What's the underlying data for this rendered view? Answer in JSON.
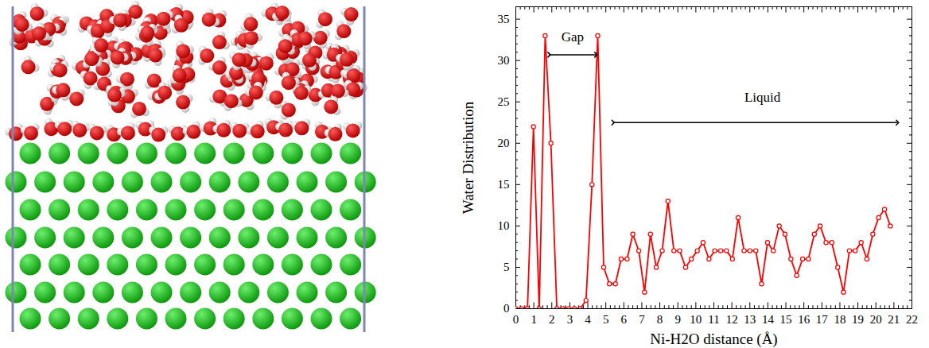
{
  "chart_data": {
    "type": "line",
    "xlabel": "Ni-H2O distance (Å)",
    "ylabel": "Water Distribution",
    "annotations": [
      "Gap",
      "Liquid"
    ],
    "x": [
      0,
      0.33,
      0.65,
      0.98,
      1.3,
      1.63,
      1.95,
      2.28,
      2.6,
      2.93,
      3.25,
      3.58,
      3.9,
      4.23,
      4.55,
      4.88,
      5.2,
      5.53,
      5.85,
      6.18,
      6.5,
      6.83,
      7.15,
      7.48,
      7.8,
      8.13,
      8.45,
      8.78,
      9.1,
      9.43,
      9.75,
      10.08,
      10.4,
      10.73,
      11.05,
      11.38,
      11.7,
      12.03,
      12.35,
      12.68,
      13,
      13.33,
      13.65,
      13.98,
      14.3,
      14.63,
      14.95,
      15.28,
      15.6,
      15.93,
      16.25,
      16.58,
      16.9,
      17.23,
      17.55,
      17.88,
      18.2,
      18.53,
      18.85,
      19.18,
      19.5,
      19.83,
      20.15,
      20.48,
      20.8
    ],
    "values": [
      0,
      0,
      0,
      22,
      0,
      33,
      20,
      0,
      0,
      0,
      0,
      0,
      1,
      15,
      33,
      5,
      3,
      3,
      6,
      6,
      9,
      7,
      2,
      9,
      5,
      7,
      13,
      7,
      7,
      5,
      6,
      7,
      8,
      6,
      7,
      7,
      7,
      6,
      11,
      7,
      7,
      7,
      3,
      8,
      7,
      10,
      9,
      6,
      4,
      6,
      6,
      9,
      10,
      8,
      8,
      5,
      2,
      7,
      7,
      8,
      6,
      9,
      11,
      12,
      10
    ],
    "color": "#ff0000",
    "marker": "circle_open",
    "xlim": [
      0,
      22
    ],
    "ylim": [
      0,
      36.5
    ],
    "xticks": [
      0,
      1,
      2,
      3,
      4,
      5,
      6,
      7,
      8,
      9,
      10,
      11,
      12,
      13,
      14,
      15,
      16,
      17,
      18,
      19,
      20,
      21,
      22
    ],
    "yticks": [
      0,
      5,
      10,
      15,
      20,
      25,
      30,
      35
    ],
    "grid": false
  }
}
